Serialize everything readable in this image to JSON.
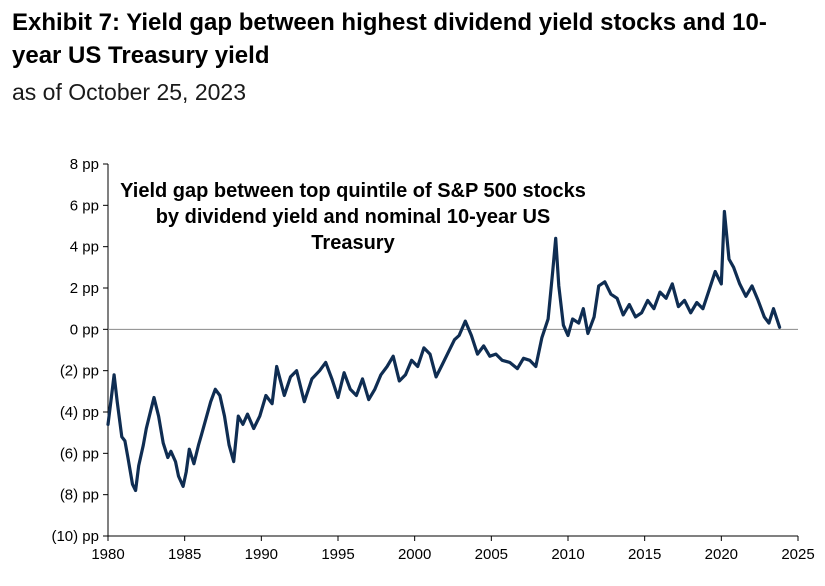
{
  "header": {
    "title": "Exhibit 7: Yield gap between highest dividend yield stocks and 10-year US Treasury yield",
    "subtitle": "as of October 25, 2023"
  },
  "chart_data": {
    "type": "line",
    "annotation": "Yield gap between top quintile of S&P 500 stocks by dividend yield and nominal 10-year US Treasury",
    "xlim": [
      1980,
      2025
    ],
    "ylim": [
      -10,
      8
    ],
    "x_ticks": [
      1980,
      1985,
      1990,
      1995,
      2000,
      2005,
      2010,
      2015,
      2020,
      2025
    ],
    "y_ticks": [
      8,
      6,
      4,
      2,
      0,
      -2,
      -4,
      -6,
      -8,
      -10
    ],
    "y_tick_labels": [
      "8 pp",
      "6 pp",
      "4 pp",
      "2 pp",
      "0 pp",
      "(2) pp",
      "(4) pp",
      "(6) pp",
      "(8) pp",
      "(10) pp"
    ],
    "line_color": "#0f2d52",
    "grid": false,
    "series": [
      {
        "x": [
          1980.0,
          1980.2,
          1980.4,
          1980.6,
          1980.9,
          1981.1,
          1981.3,
          1981.6,
          1981.8,
          1982.0,
          1982.3,
          1982.5,
          1982.8,
          1983.0,
          1983.3,
          1983.6,
          1983.9,
          1984.1,
          1984.4,
          1984.6,
          1984.9,
          1985.1,
          1985.3,
          1985.6,
          1985.9,
          1986.1,
          1986.4,
          1986.7,
          1987.0,
          1987.3,
          1987.6,
          1987.9,
          1988.2,
          1988.5,
          1988.8,
          1989.1,
          1989.5,
          1989.9,
          1990.3,
          1990.7,
          1991.0,
          1991.5,
          1991.9,
          1992.3,
          1992.8,
          1993.3,
          1993.8,
          1994.2,
          1994.6,
          1995.0,
          1995.4,
          1995.8,
          1996.2,
          1996.6,
          1997.0,
          1997.4,
          1997.8,
          1998.2,
          1998.6,
          1999.0,
          1999.4,
          1999.8,
          2000.2,
          2000.6,
          2001.0,
          2001.4,
          2001.8,
          2002.2,
          2002.6,
          2002.9,
          2003.3,
          2003.7,
          2004.1,
          2004.5,
          2004.9,
          2005.3,
          2005.7,
          2006.2,
          2006.7,
          2007.1,
          2007.5,
          2007.9,
          2008.3,
          2008.7,
          2009.0,
          2009.2,
          2009.4,
          2009.7,
          2010.0,
          2010.3,
          2010.7,
          2011.0,
          2011.3,
          2011.7,
          2012.0,
          2012.4,
          2012.8,
          2013.2,
          2013.6,
          2014.0,
          2014.4,
          2014.8,
          2015.2,
          2015.6,
          2016.0,
          2016.4,
          2016.8,
          2017.2,
          2017.6,
          2018.0,
          2018.4,
          2018.8,
          2019.2,
          2019.6,
          2020.0,
          2020.2,
          2020.5,
          2020.8,
          2021.2,
          2021.6,
          2022.0,
          2022.4,
          2022.8,
          2023.1,
          2023.4,
          2023.8
        ],
        "y": [
          -4.6,
          -3.4,
          -2.2,
          -3.5,
          -5.2,
          -5.4,
          -6.2,
          -7.5,
          -7.8,
          -6.6,
          -5.6,
          -4.8,
          -3.9,
          -3.3,
          -4.2,
          -5.5,
          -6.2,
          -5.9,
          -6.4,
          -7.1,
          -7.6,
          -6.9,
          -5.8,
          -6.5,
          -5.6,
          -5.1,
          -4.3,
          -3.5,
          -2.9,
          -3.2,
          -4.2,
          -5.6,
          -6.4,
          -4.2,
          -4.6,
          -4.1,
          -4.8,
          -4.2,
          -3.2,
          -3.6,
          -1.8,
          -3.2,
          -2.3,
          -2.0,
          -3.5,
          -2.4,
          -2.0,
          -1.6,
          -2.4,
          -3.3,
          -2.1,
          -2.9,
          -3.2,
          -2.4,
          -3.4,
          -2.9,
          -2.2,
          -1.8,
          -1.3,
          -2.5,
          -2.2,
          -1.5,
          -1.8,
          -0.9,
          -1.2,
          -2.3,
          -1.7,
          -1.1,
          -0.5,
          -0.3,
          0.4,
          -0.3,
          -1.2,
          -0.8,
          -1.3,
          -1.2,
          -1.5,
          -1.6,
          -1.9,
          -1.4,
          -1.5,
          -1.8,
          -0.4,
          0.5,
          2.8,
          4.4,
          2.1,
          0.2,
          -0.3,
          0.5,
          0.3,
          1.0,
          -0.2,
          0.6,
          2.1,
          2.3,
          1.7,
          1.5,
          0.7,
          1.2,
          0.6,
          0.8,
          1.4,
          1.0,
          1.8,
          1.5,
          2.2,
          1.1,
          1.4,
          0.8,
          1.3,
          1.0,
          1.9,
          2.8,
          2.2,
          5.7,
          3.4,
          3.0,
          2.2,
          1.6,
          2.1,
          1.4,
          0.6,
          0.3,
          1.0,
          0.1
        ]
      }
    ]
  }
}
